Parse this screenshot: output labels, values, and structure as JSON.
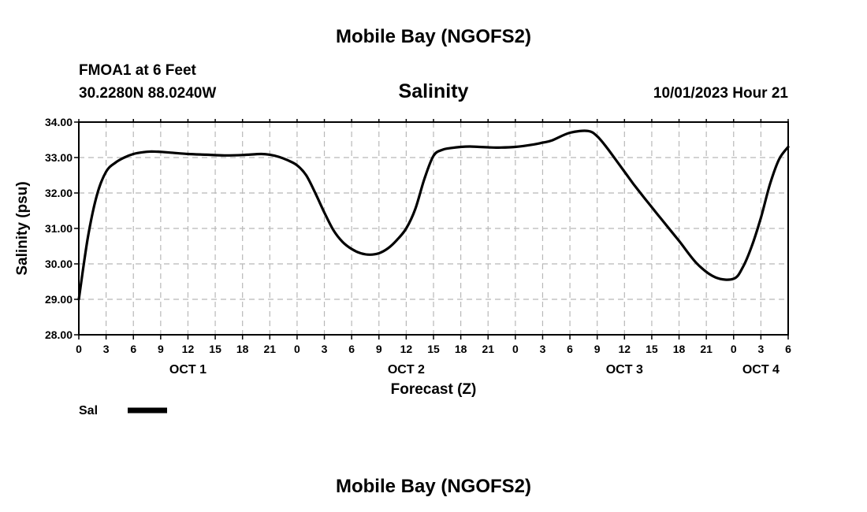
{
  "header": {
    "main_title": "Mobile Bay (NGOFS2)",
    "station": "FMOA1 at 6 Feet",
    "coordinates": "30.2280N  88.0240W",
    "variable": "Salinity",
    "datetime": "10/01/2023 Hour 21"
  },
  "footer": {
    "title": "Mobile Bay (NGOFS2)"
  },
  "legend": {
    "label": "Sal",
    "color": "#000000"
  },
  "chart_data": {
    "type": "line",
    "title": "Salinity",
    "xlabel": "Forecast (Z)",
    "ylabel": "Salinity (psu)",
    "ylim": [
      28,
      34
    ],
    "yticks": [
      "28.00",
      "29.00",
      "30.00",
      "31.00",
      "32.00",
      "33.00",
      "34.00"
    ],
    "xlim": [
      0,
      78
    ],
    "xtick_step_hours": 3,
    "xtick_labels": [
      "0",
      "3",
      "6",
      "9",
      "12",
      "15",
      "18",
      "21",
      "0",
      "3",
      "6",
      "9",
      "12",
      "15",
      "18",
      "21",
      "0",
      "3",
      "6",
      "9",
      "12",
      "15",
      "18",
      "21",
      "0",
      "3",
      "6"
    ],
    "day_labels": [
      {
        "label": "OCT 1",
        "hour": 12
      },
      {
        "label": "OCT 2",
        "hour": 36
      },
      {
        "label": "OCT 3",
        "hour": 60
      },
      {
        "label": "OCT 4",
        "hour": 75
      }
    ],
    "grid": true,
    "series": [
      {
        "name": "Sal",
        "x": [
          0,
          1,
          2,
          3,
          4,
          5,
          6,
          7,
          8,
          9,
          10,
          12,
          14,
          16,
          18,
          20,
          21,
          22,
          23,
          24,
          25,
          26,
          27,
          28,
          29,
          30,
          31,
          32,
          33,
          34,
          35,
          36,
          37,
          38,
          39,
          40,
          41,
          42,
          43,
          44,
          45,
          46,
          48,
          50,
          51,
          52,
          54,
          56,
          57,
          58,
          59,
          60,
          61,
          62,
          63,
          64,
          66,
          68,
          70,
          72,
          73,
          74,
          75,
          76,
          77,
          78
        ],
        "values": [
          29.0,
          30.75,
          31.95,
          32.6,
          32.85,
          33.0,
          33.1,
          33.15,
          33.17,
          33.16,
          33.14,
          33.1,
          33.08,
          33.06,
          33.07,
          33.1,
          33.08,
          33.02,
          32.92,
          32.78,
          32.5,
          32.0,
          31.45,
          30.95,
          30.62,
          30.42,
          30.3,
          30.26,
          30.3,
          30.44,
          30.68,
          31.0,
          31.55,
          32.4,
          33.05,
          33.22,
          33.27,
          33.3,
          33.31,
          33.3,
          33.29,
          33.28,
          33.3,
          33.37,
          33.42,
          33.48,
          33.7,
          33.75,
          33.6,
          33.3,
          32.95,
          32.6,
          32.25,
          31.92,
          31.6,
          31.28,
          30.65,
          30.0,
          29.62,
          29.58,
          29.9,
          30.5,
          31.3,
          32.25,
          32.95,
          33.3
        ]
      }
    ]
  }
}
